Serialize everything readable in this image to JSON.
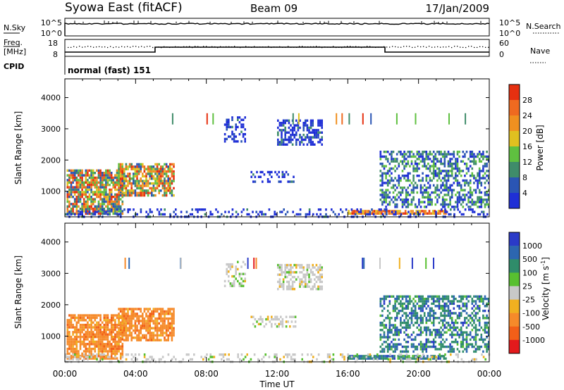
{
  "header": {
    "station": "Syowa East (fitACF)",
    "beam": "Beam 09",
    "date": "17/Jan/2009"
  },
  "nsky_panel": {
    "left_label": "N.Sky",
    "left_ticks": [
      "10^5",
      "10^0"
    ],
    "right_label": "N.Search",
    "right_ticks": [
      "10^5",
      "10^0"
    ]
  },
  "freq_panel": {
    "left_label_1": "Freq.",
    "left_label_2": "[MHz]",
    "left_ticks": [
      "18",
      "8"
    ],
    "right_label": "Nave",
    "right_ticks": [
      "60",
      "0"
    ],
    "cpid_label": "CPID",
    "cpid_text": "normal (fast) 151"
  },
  "colors": {
    "power": [
      "#1f2fd6",
      "#2a55b4",
      "#3f8c6a",
      "#5fc040",
      "#e0c020",
      "#f09020",
      "#ef6a20",
      "#e63010"
    ],
    "velocity": [
      "#e31a1c",
      "#f25f18",
      "#f68a2a",
      "#f0b020",
      "#c8c8c8",
      "#58c030",
      "#2f8c6a",
      "#2c66b0",
      "#2a3ac8"
    ]
  },
  "chart_data": [
    {
      "type": "heatmap",
      "title": "",
      "parameter": "Power",
      "ylabel": "Slant Range [km]",
      "xlabel": "Time UT",
      "xlim_hours": [
        0,
        24
      ],
      "ylim_km": [
        180,
        4600
      ],
      "x_ticks": [
        "00:00",
        "04:00",
        "08:00",
        "12:00",
        "16:00",
        "20:00",
        "00:00"
      ],
      "y_ticks": [
        1000,
        2000,
        3000,
        4000
      ],
      "colorbar": {
        "label": "Power [dB]",
        "ticks": [
          "4",
          "8",
          "12",
          "16",
          "20",
          "24",
          "28"
        ]
      },
      "regions": [
        {
          "t0": 0.1,
          "t1": 3.3,
          "r0": 300,
          "r1": 1700,
          "density": 0.78,
          "dominant": "mid-high"
        },
        {
          "t0": 3.0,
          "t1": 6.2,
          "r0": 900,
          "r1": 1900,
          "density": 0.75,
          "dominant": "mid-high"
        },
        {
          "t0": 9.0,
          "t1": 10.2,
          "r0": 2600,
          "r1": 3400,
          "density": 0.4,
          "dominant": "low"
        },
        {
          "t0": 10.5,
          "t1": 13.0,
          "r0": 1300,
          "r1": 1650,
          "density": 0.35,
          "dominant": "low"
        },
        {
          "t0": 12.0,
          "t1": 14.5,
          "r0": 2500,
          "r1": 3300,
          "density": 0.55,
          "dominant": "low"
        },
        {
          "t0": 16.0,
          "t1": 21.5,
          "r0": 300,
          "r1": 400,
          "density": 0.85,
          "dominant": "high"
        },
        {
          "t0": 17.8,
          "t1": 24.0,
          "r0": 500,
          "r1": 2300,
          "density": 0.5,
          "dominant": "low-mid"
        },
        {
          "t0": 0.0,
          "t1": 24.0,
          "r0": 190,
          "r1": 450,
          "density": 0.25,
          "dominant": "low"
        }
      ]
    },
    {
      "type": "heatmap",
      "title": "",
      "parameter": "Velocity",
      "ylabel": "Slant Range [km]",
      "xlabel": "Time UT",
      "xlim_hours": [
        0,
        24
      ],
      "ylim_km": [
        180,
        4600
      ],
      "x_ticks": [
        "00:00",
        "04:00",
        "08:00",
        "12:00",
        "16:00",
        "20:00",
        "00:00"
      ],
      "y_ticks": [
        1000,
        2000,
        3000,
        4000
      ],
      "colorbar": {
        "label": "Velocity [m s",
        "label_sup": "-1",
        "label_end": "]",
        "ticks": [
          "1000",
          "500",
          "100",
          "25",
          "-25",
          "-100",
          "-500",
          "-1000"
        ]
      },
      "regions": [
        {
          "t0": 0.1,
          "t1": 3.3,
          "r0": 300,
          "r1": 1700,
          "density": 0.8,
          "dominant": "negative"
        },
        {
          "t0": 3.0,
          "t1": 6.2,
          "r0": 900,
          "r1": 1900,
          "density": 0.75,
          "dominant": "negative"
        },
        {
          "t0": 9.0,
          "t1": 10.2,
          "r0": 2600,
          "r1": 3400,
          "density": 0.35,
          "dominant": "near-zero"
        },
        {
          "t0": 10.5,
          "t1": 13.0,
          "r0": 1300,
          "r1": 1650,
          "density": 0.35,
          "dominant": "near-zero"
        },
        {
          "t0": 12.0,
          "t1": 14.5,
          "r0": 2500,
          "r1": 3300,
          "density": 0.55,
          "dominant": "near-zero"
        },
        {
          "t0": 16.0,
          "t1": 21.5,
          "r0": 300,
          "r1": 400,
          "density": 0.85,
          "dominant": "positive"
        },
        {
          "t0": 17.8,
          "t1": 24.0,
          "r0": 500,
          "r1": 2300,
          "density": 0.5,
          "dominant": "positive"
        },
        {
          "t0": 0.0,
          "t1": 24.0,
          "r0": 190,
          "r1": 450,
          "density": 0.25,
          "dominant": "near-zero"
        }
      ]
    }
  ]
}
